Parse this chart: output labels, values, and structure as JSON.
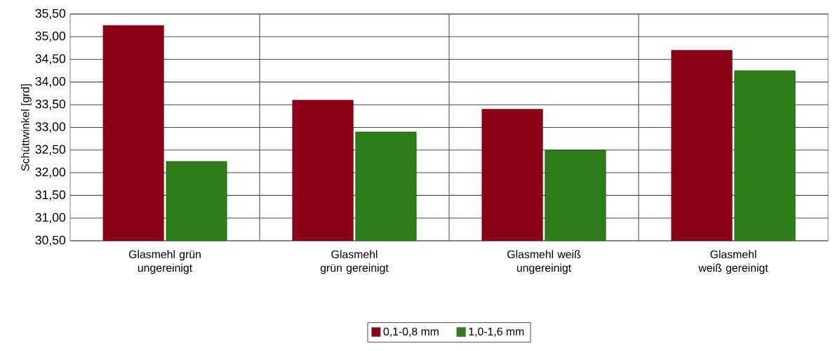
{
  "chart_data": {
    "type": "bar",
    "ylabel": "Schüttwinkel [grd]",
    "categories": [
      "Glasmehl grün ungereinigt",
      "Glasmehl grün gereinigt",
      "Glasmehl weiß ungereinigt",
      "Glasmehl weiß gereinigt"
    ],
    "series": [
      {
        "name": "0,1-0,8 mm",
        "color": "#8b0016",
        "values": [
          35.25,
          33.6,
          33.4,
          34.7
        ]
      },
      {
        "name": "1,0-1,6 mm",
        "color": "#2e7d1a",
        "values": [
          32.25,
          32.9,
          32.5,
          34.25
        ]
      }
    ],
    "ylim": [
      30.5,
      35.5
    ],
    "yticks": [
      {
        "value": 30.5,
        "label": "30,50"
      },
      {
        "value": 31,
        "label": "31,00"
      },
      {
        "value": 31.5,
        "label": "31,50"
      },
      {
        "value": 32,
        "label": "32,00"
      },
      {
        "value": 32.5,
        "label": "32,50"
      },
      {
        "value": 33,
        "label": "33,00"
      },
      {
        "value": 33.5,
        "label": "33,50"
      },
      {
        "value": 34,
        "label": "34,00"
      },
      {
        "value": 34.5,
        "label": "34,50"
      },
      {
        "value": 35,
        "label": "35,00"
      },
      {
        "value": 35.5,
        "label": "35,50"
      }
    ],
    "grid": true,
    "legend": "bottom"
  }
}
